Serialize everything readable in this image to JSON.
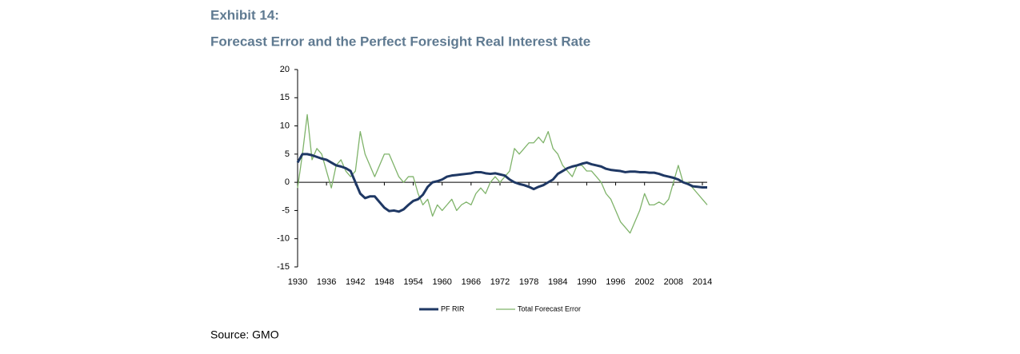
{
  "chart_data": {
    "type": "line",
    "title": "Exhibit 14:",
    "subtitle": "Forecast Error and the Perfect Foresight Real Interest Rate",
    "source": "Source: GMO",
    "x": [
      1930,
      1931,
      1932,
      1933,
      1934,
      1935,
      1936,
      1937,
      1938,
      1939,
      1940,
      1941,
      1942,
      1943,
      1944,
      1945,
      1946,
      1947,
      1948,
      1949,
      1950,
      1951,
      1952,
      1953,
      1954,
      1955,
      1956,
      1957,
      1958,
      1959,
      1960,
      1961,
      1962,
      1963,
      1964,
      1965,
      1966,
      1967,
      1968,
      1969,
      1970,
      1971,
      1972,
      1973,
      1974,
      1975,
      1976,
      1977,
      1978,
      1979,
      1980,
      1981,
      1982,
      1983,
      1984,
      1985,
      1986,
      1987,
      1988,
      1989,
      1990,
      1991,
      1992,
      1993,
      1994,
      1995,
      1996,
      1997,
      1998,
      1999,
      2000,
      2001,
      2002,
      2003,
      2004,
      2005,
      2006,
      2007,
      2008,
      2009,
      2010,
      2011,
      2012,
      2013,
      2014,
      2015
    ],
    "series": [
      {
        "name": "PF RIR",
        "color": "#1f3864",
        "values": [
          3.5,
          5,
          5,
          4.8,
          4.5,
          4.2,
          4,
          3.5,
          3,
          2.8,
          2.5,
          2,
          0,
          -2,
          -2.8,
          -2.5,
          -2.5,
          -3.5,
          -4.5,
          -5.1,
          -5,
          -5.2,
          -4.8,
          -4,
          -3.3,
          -3,
          -2.2,
          -0.8,
          0,
          0.2,
          0.5,
          1,
          1.2,
          1.3,
          1.4,
          1.5,
          1.6,
          1.8,
          1.8,
          1.6,
          1.5,
          1.6,
          1.4,
          1.2,
          0.5,
          0,
          -0.3,
          -0.5,
          -0.8,
          -1.2,
          -0.8,
          -0.5,
          0,
          0.5,
          1.5,
          2,
          2.5,
          2.8,
          3,
          3.3,
          3.5,
          3.2,
          3,
          2.8,
          2.4,
          2.2,
          2.1,
          2,
          1.8,
          1.9,
          1.9,
          1.8,
          1.8,
          1.7,
          1.7,
          1.5,
          1.2,
          1,
          0.8,
          0.5,
          0,
          -0.3,
          -0.7,
          -0.8,
          -0.9,
          -0.9
        ]
      },
      {
        "name": "Total Forecast Error",
        "color": "#7fb36a",
        "values": [
          -1,
          5,
          12,
          4,
          6,
          5,
          2,
          -1,
          3,
          4,
          2,
          1,
          2,
          9,
          5,
          3,
          1,
          3,
          5,
          5,
          3,
          1,
          0,
          1,
          1,
          -2,
          -4,
          -3,
          -6,
          -4,
          -5,
          -4,
          -3,
          -5,
          -4,
          -3.5,
          -4,
          -2,
          -1,
          -2,
          0,
          1,
          0,
          1,
          2,
          6,
          5,
          6,
          7,
          7,
          8,
          7,
          9,
          6,
          5,
          3,
          2,
          1,
          3,
          3,
          2,
          2,
          1,
          0,
          -2,
          -3,
          -5,
          -7,
          -8,
          -9,
          -7,
          -5,
          -2,
          -4,
          -4,
          -3.5,
          -4,
          -3,
          0,
          3,
          0,
          0,
          -1,
          -2,
          -3,
          -4
        ]
      }
    ],
    "xlim": [
      1930,
      2015
    ],
    "xticks": [
      1930,
      1936,
      1942,
      1948,
      1954,
      1960,
      1966,
      1972,
      1978,
      1984,
      1990,
      1996,
      2002,
      2008,
      2014
    ],
    "ylim": [
      -15,
      20
    ],
    "yticks": [
      -15,
      -10,
      -5,
      0,
      5,
      10,
      15,
      20
    ]
  }
}
